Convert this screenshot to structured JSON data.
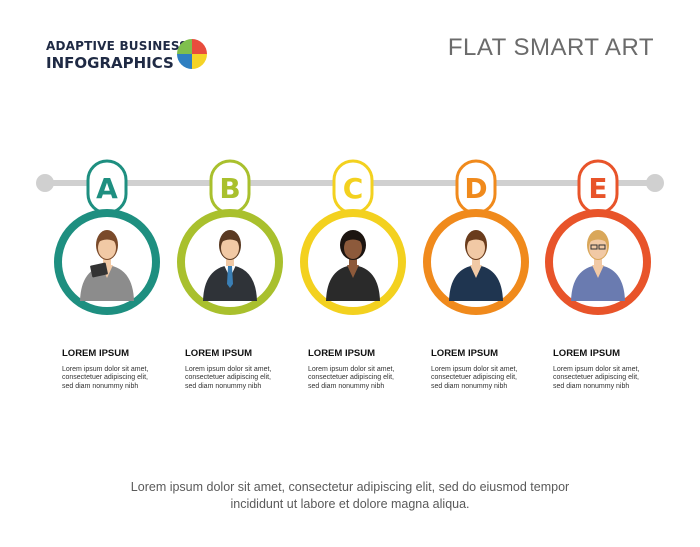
{
  "brand": {
    "line1": "ADAPTIVE BUSINESS",
    "line2": "INFOGRAPHICS",
    "logo_colors": [
      "#e84c3d",
      "#f5d327",
      "#2e7fc1",
      "#7fbf4d"
    ]
  },
  "title": "FLAT SMART ART",
  "timeline_color": "#d0d0d0",
  "steps": [
    {
      "letter": "A",
      "color": "#1e8f80",
      "icon": "woman-with-tablet-avatar",
      "heading": "LOREM IPSUM",
      "lines": [
        "Lorem ipsum dolor sit amet,",
        "consectetuer adipiscing elit,",
        "sed diam nonummy nibh"
      ]
    },
    {
      "letter": "B",
      "color": "#a9c02d",
      "icon": "businessman-avatar",
      "heading": "LOREM IPSUM",
      "lines": [
        "Lorem ipsum dolor sit amet,",
        "consectetuer adipiscing elit,",
        "sed diam nonummy nibh"
      ]
    },
    {
      "letter": "C",
      "color": "#f3d11f",
      "icon": "businesswoman-arms-crossed-avatar",
      "heading": "LOREM IPSUM",
      "lines": [
        "Lorem ipsum dolor sit amet,",
        "consectetuer adipiscing elit,",
        "sed diam nonummy nibh"
      ]
    },
    {
      "letter": "D",
      "color": "#f08a1c",
      "icon": "businesswoman-avatar",
      "heading": "LOREM IPSUM",
      "lines": [
        "Lorem ipsum dolor sit amet,",
        "consectetuer adipiscing elit,",
        "sed diam nonummy nibh"
      ]
    },
    {
      "letter": "E",
      "color": "#e8542a",
      "icon": "woman-with-glasses-avatar",
      "heading": "LOREM IPSUM",
      "lines": [
        "Lorem ipsum dolor sit amet,",
        "consectetuer adipiscing elit,",
        "sed diam nonummy nibh"
      ]
    }
  ],
  "footer": {
    "line1": "Lorem ipsum dolor sit amet, consectetur adipiscing elit, sed do eiusmod tempor",
    "line2": "incididunt ut labore et dolore magna aliqua."
  }
}
